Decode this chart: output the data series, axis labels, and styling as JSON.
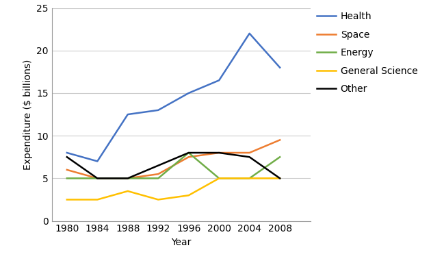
{
  "years": [
    1980,
    1984,
    1988,
    1992,
    1996,
    2000,
    2004,
    2008
  ],
  "series": {
    "Health": {
      "values": [
        8.0,
        7.0,
        12.5,
        13.0,
        15.0,
        16.5,
        22.0,
        18.0
      ],
      "color": "#4472C4",
      "linewidth": 1.8
    },
    "Space": {
      "values": [
        6.0,
        5.0,
        5.0,
        5.5,
        7.5,
        8.0,
        8.0,
        9.5
      ],
      "color": "#ED7D31",
      "linewidth": 1.8
    },
    "Energy": {
      "values": [
        5.0,
        5.0,
        5.0,
        5.0,
        8.0,
        5.0,
        5.0,
        7.5
      ],
      "color": "#70AD47",
      "linewidth": 1.8
    },
    "General Science": {
      "values": [
        2.5,
        2.5,
        3.5,
        2.5,
        3.0,
        5.0,
        5.0,
        5.0
      ],
      "color": "#FFC000",
      "linewidth": 1.8
    },
    "Other": {
      "values": [
        7.5,
        5.0,
        5.0,
        6.5,
        8.0,
        8.0,
        7.5,
        5.0
      ],
      "color": "#000000",
      "linewidth": 1.8
    }
  },
  "xlabel": "Year",
  "ylabel": "Expenditure ($ billions)",
  "ylim": [
    0,
    25
  ],
  "yticks": [
    0,
    5,
    10,
    15,
    20,
    25
  ],
  "xlim": [
    1978,
    2012
  ],
  "xticks": [
    1980,
    1984,
    1988,
    1992,
    1996,
    2000,
    2004,
    2008
  ],
  "legend_order": [
    "Health",
    "Space",
    "Energy",
    "General Science",
    "Other"
  ],
  "background_color": "#FFFFFF",
  "grid_color": "#CCCCCC",
  "label_fontsize": 10,
  "tick_fontsize": 10,
  "legend_fontsize": 10
}
